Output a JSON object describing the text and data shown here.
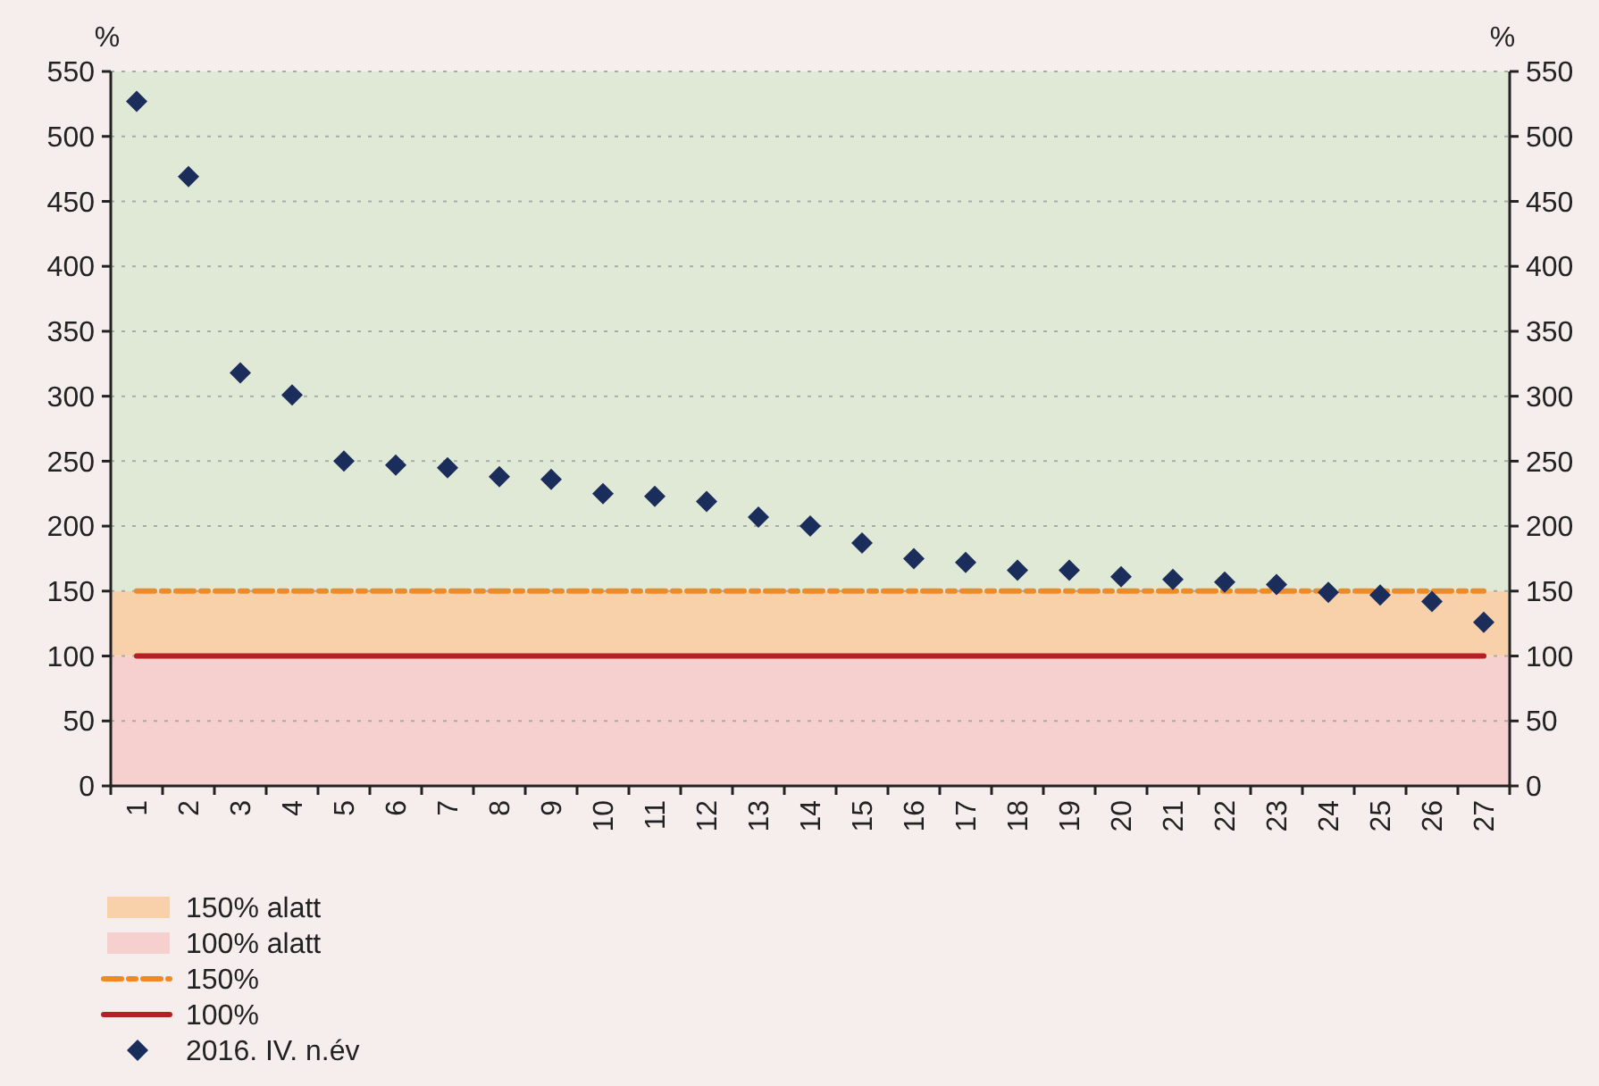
{
  "chart_data": {
    "type": "scatter",
    "ylabel": "%",
    "y2label": "%",
    "categories": [
      "1",
      "2",
      "3",
      "4",
      "5",
      "6",
      "7",
      "8",
      "9",
      "10",
      "11",
      "12",
      "13",
      "14",
      "15",
      "16",
      "17",
      "18",
      "19",
      "20",
      "21",
      "22",
      "23",
      "24",
      "25",
      "26",
      "27"
    ],
    "series": [
      {
        "name": "2016. IV. n.év",
        "color": "#1b2d5a",
        "values": [
          527,
          469,
          318,
          301,
          250,
          247,
          245,
          238,
          236,
          225,
          223,
          219,
          207,
          200,
          187,
          175,
          172,
          166,
          166,
          161,
          159,
          157,
          155,
          149,
          147,
          142,
          126
        ]
      }
    ],
    "ylim": [
      0,
      550
    ],
    "yticks": [
      0,
      50,
      100,
      150,
      200,
      250,
      300,
      350,
      400,
      450,
      500,
      550
    ],
    "y2lim": [
      0,
      550
    ],
    "y2ticks": [
      0,
      50,
      100,
      150,
      200,
      250,
      300,
      350,
      400,
      450,
      500,
      550
    ],
    "bands": [
      {
        "axis": "y",
        "from": 150,
        "to": 550,
        "color": "#e0e9d5"
      },
      {
        "axis": "y",
        "from": 100,
        "to": 150,
        "label": "150% alatt",
        "color": "#f8d1ab"
      },
      {
        "axis": "y",
        "from": 0,
        "to": 100,
        "label": "100% alatt",
        "color": "#f6d0cf"
      }
    ],
    "ref_lines": [
      {
        "axis": "y",
        "value": 150,
        "label": "150%",
        "color": "#f28a24",
        "line_style": "dashed"
      },
      {
        "axis": "y",
        "value": 100,
        "label": "100%",
        "color": "#b52025",
        "line_style": "solid"
      }
    ],
    "grid": "y",
    "marker": "diamond",
    "legend": "bottom left"
  }
}
